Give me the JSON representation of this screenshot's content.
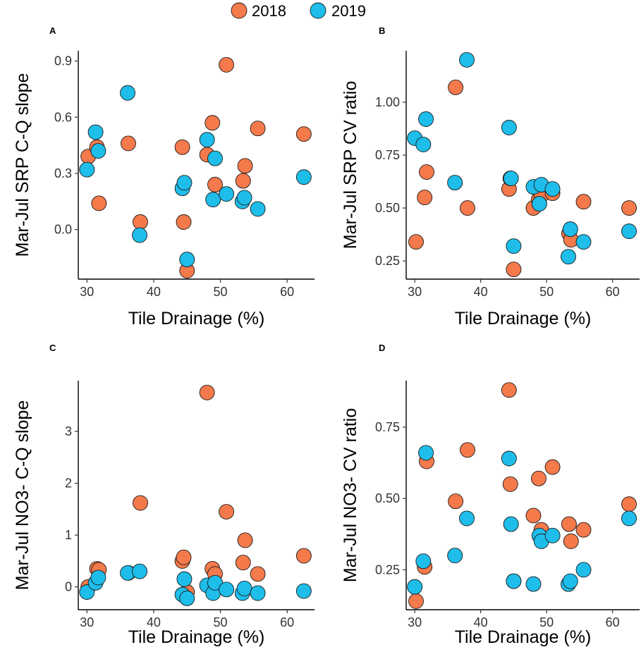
{
  "legend": {
    "items": [
      {
        "label": "2018",
        "color": "#F4794B"
      },
      {
        "label": "2019",
        "color": "#1EBDEA"
      }
    ]
  },
  "chart_data": [
    {
      "panel": "A",
      "type": "scatter",
      "xlabel": "Tile Drainage (%)",
      "ylabel": "Mar-Jul SRP C-Q slope",
      "xlim": [
        28.7,
        64.1
      ],
      "ylim": [
        -0.265,
        0.955
      ],
      "xticks": [
        30,
        40,
        50,
        60
      ],
      "yticks": [
        0.0,
        0.3,
        0.6,
        0.9
      ],
      "yticklabels": [
        "0.0",
        "0.3",
        "0.6",
        "0.9"
      ],
      "series": [
        {
          "name": "2018",
          "color": "#F4794B",
          "points": [
            [
              30.2,
              0.39
            ],
            [
              31.5,
              0.44
            ],
            [
              31.8,
              0.14
            ],
            [
              36.2,
              0.46
            ],
            [
              38.0,
              0.04
            ],
            [
              44.3,
              0.44
            ],
            [
              44.5,
              0.04
            ],
            [
              45.0,
              -0.22
            ],
            [
              48.0,
              0.4
            ],
            [
              48.8,
              0.57
            ],
            [
              49.2,
              0.24
            ],
            [
              50.9,
              0.88
            ],
            [
              53.4,
              0.26
            ],
            [
              53.7,
              0.34
            ],
            [
              55.6,
              0.54
            ],
            [
              62.5,
              0.51
            ]
          ]
        },
        {
          "name": "2019",
          "color": "#1EBDEA",
          "points": [
            [
              30.0,
              0.32
            ],
            [
              31.3,
              0.52
            ],
            [
              31.7,
              0.42
            ],
            [
              36.1,
              0.73
            ],
            [
              37.9,
              -0.03
            ],
            [
              44.3,
              0.22
            ],
            [
              44.6,
              0.25
            ],
            [
              45.0,
              -0.16
            ],
            [
              48.0,
              0.48
            ],
            [
              48.9,
              0.16
            ],
            [
              49.2,
              0.38
            ],
            [
              50.9,
              0.19
            ],
            [
              53.3,
              0.15
            ],
            [
              53.6,
              0.17
            ],
            [
              55.6,
              0.11
            ],
            [
              62.5,
              0.28
            ]
          ]
        }
      ]
    },
    {
      "panel": "B",
      "type": "scatter",
      "xlabel": "Tile Drainage (%)",
      "ylabel": "Mar-Jul SRP CV ratio",
      "xlim": [
        28.7,
        64.1
      ],
      "ylim": [
        0.164,
        1.243
      ],
      "xticks": [
        30,
        40,
        50,
        60
      ],
      "yticks": [
        0.25,
        0.5,
        0.75,
        1.0
      ],
      "yticklabels": [
        "0.25",
        "0.50",
        "0.75",
        "1.00"
      ],
      "series": [
        {
          "name": "2018",
          "color": "#F4794B",
          "points": [
            [
              30.2,
              0.34
            ],
            [
              31.5,
              0.55
            ],
            [
              31.8,
              0.67
            ],
            [
              36.2,
              1.07
            ],
            [
              38.0,
              0.5
            ],
            [
              44.3,
              0.59
            ],
            [
              44.5,
              0.64
            ],
            [
              45.0,
              0.21
            ],
            [
              48.0,
              0.5
            ],
            [
              48.8,
              0.54
            ],
            [
              49.2,
              0.56
            ],
            [
              50.9,
              0.57
            ],
            [
              53.4,
              0.38
            ],
            [
              53.7,
              0.35
            ],
            [
              55.6,
              0.53
            ],
            [
              62.5,
              0.5
            ]
          ]
        },
        {
          "name": "2019",
          "color": "#1EBDEA",
          "points": [
            [
              30.0,
              0.83
            ],
            [
              31.3,
              0.8
            ],
            [
              31.7,
              0.92
            ],
            [
              36.1,
              0.62
            ],
            [
              37.9,
              1.2
            ],
            [
              44.3,
              0.88
            ],
            [
              44.6,
              0.64
            ],
            [
              45.0,
              0.32
            ],
            [
              48.0,
              0.6
            ],
            [
              48.9,
              0.52
            ],
            [
              49.2,
              0.61
            ],
            [
              50.9,
              0.59
            ],
            [
              53.3,
              0.27
            ],
            [
              53.6,
              0.4
            ],
            [
              55.6,
              0.34
            ],
            [
              62.5,
              0.39
            ]
          ]
        }
      ]
    },
    {
      "panel": "C",
      "type": "scatter",
      "xlabel": "Tile Drainage (%)",
      "ylabel": "Mar-Jul NO3- C-Q slope",
      "xlim": [
        28.7,
        64.1
      ],
      "ylim": [
        -0.44,
        3.98
      ],
      "xticks": [
        30,
        40,
        50,
        60
      ],
      "yticks": [
        0,
        1,
        2,
        3
      ],
      "yticklabels": [
        "0",
        "1",
        "2",
        "3"
      ],
      "series": [
        {
          "name": "2018",
          "color": "#F4794B",
          "points": [
            [
              30.2,
              0.0
            ],
            [
              31.5,
              0.35
            ],
            [
              31.8,
              0.33
            ],
            [
              36.2,
              0.27
            ],
            [
              38.0,
              1.62
            ],
            [
              44.3,
              0.5
            ],
            [
              44.5,
              0.57
            ],
            [
              45.0,
              -0.1
            ],
            [
              48.0,
              3.75
            ],
            [
              48.8,
              0.35
            ],
            [
              49.2,
              0.25
            ],
            [
              50.9,
              1.45
            ],
            [
              53.4,
              0.47
            ],
            [
              53.7,
              0.9
            ],
            [
              55.6,
              0.25
            ],
            [
              62.5,
              0.6
            ]
          ]
        },
        {
          "name": "2019",
          "color": "#1EBDEA",
          "points": [
            [
              30.0,
              -0.1
            ],
            [
              31.3,
              0.08
            ],
            [
              31.7,
              0.18
            ],
            [
              36.1,
              0.27
            ],
            [
              37.9,
              0.3
            ],
            [
              44.3,
              -0.15
            ],
            [
              44.6,
              0.15
            ],
            [
              45.0,
              -0.22
            ],
            [
              48.0,
              0.03
            ],
            [
              48.9,
              -0.12
            ],
            [
              49.2,
              0.08
            ],
            [
              50.9,
              -0.05
            ],
            [
              53.3,
              -0.12
            ],
            [
              53.6,
              -0.03
            ],
            [
              55.6,
              -0.12
            ],
            [
              62.5,
              -0.08
            ]
          ]
        }
      ]
    },
    {
      "panel": "D",
      "type": "scatter",
      "xlabel": "Tile Drainage (%)",
      "ylabel": "Mar-Jul NO3- CV ratio",
      "xlim": [
        28.7,
        64.1
      ],
      "ylim": [
        0.11,
        0.913
      ],
      "xticks": [
        30,
        40,
        50,
        60
      ],
      "yticks": [
        0.25,
        0.5,
        0.75
      ],
      "yticklabels": [
        "0.25",
        "0.50",
        "0.75"
      ],
      "series": [
        {
          "name": "2018",
          "color": "#F4794B",
          "points": [
            [
              30.2,
              0.14
            ],
            [
              31.5,
              0.26
            ],
            [
              31.8,
              0.63
            ],
            [
              36.2,
              0.49
            ],
            [
              38.0,
              0.67
            ],
            [
              44.3,
              0.88
            ],
            [
              44.5,
              0.55
            ],
            [
              45.0,
              0.21
            ],
            [
              48.0,
              0.44
            ],
            [
              48.8,
              0.57
            ],
            [
              49.2,
              0.39
            ],
            [
              50.9,
              0.61
            ],
            [
              53.4,
              0.41
            ],
            [
              53.7,
              0.35
            ],
            [
              55.6,
              0.39
            ],
            [
              62.5,
              0.48
            ]
          ]
        },
        {
          "name": "2019",
          "color": "#1EBDEA",
          "points": [
            [
              30.0,
              0.19
            ],
            [
              31.3,
              0.28
            ],
            [
              31.7,
              0.66
            ],
            [
              36.1,
              0.3
            ],
            [
              37.9,
              0.43
            ],
            [
              44.3,
              0.64
            ],
            [
              44.6,
              0.41
            ],
            [
              45.0,
              0.21
            ],
            [
              48.0,
              0.2
            ],
            [
              48.9,
              0.37
            ],
            [
              49.2,
              0.35
            ],
            [
              50.9,
              0.37
            ],
            [
              53.3,
              0.2
            ],
            [
              53.6,
              0.21
            ],
            [
              55.6,
              0.25
            ],
            [
              62.5,
              0.43
            ]
          ]
        }
      ]
    }
  ]
}
